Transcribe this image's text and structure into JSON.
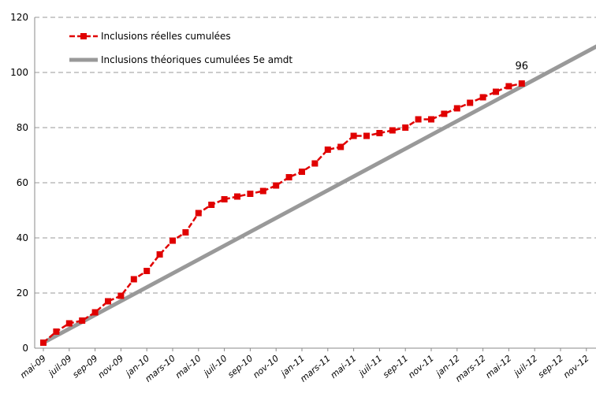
{
  "chart_data": {
    "type": "line",
    "title": "",
    "xlabel": "",
    "ylabel": "",
    "ylim": [
      0,
      120
    ],
    "yticks": [
      0,
      20,
      40,
      60,
      80,
      100,
      120
    ],
    "grid": true,
    "legend_position": "top-left",
    "x_tick_labels": [
      "mai-09",
      "juil-09",
      "sep-09",
      "nov-09",
      "jan-10",
      "mars-10",
      "mai-10",
      "juil-10",
      "sep-10",
      "nov-10",
      "jan-11",
      "mars-11",
      "mai-11",
      "juil-11",
      "sep-11",
      "nov-11",
      "jan-12",
      "mars-12",
      "mai-12",
      "juil-12",
      "sep-12",
      "nov-12"
    ],
    "series": [
      {
        "name": "Inclusions réelles cumulées",
        "color": "#e00000",
        "marker": "square",
        "x_start": "mai-09",
        "step": "month",
        "values": [
          2,
          6,
          9,
          10,
          13,
          17,
          19,
          25,
          28,
          34,
          39,
          42,
          49,
          52,
          54,
          55,
          56,
          57,
          59,
          62,
          64,
          67,
          72,
          73,
          77,
          77,
          78,
          79,
          80,
          83,
          83,
          85,
          87,
          89,
          91,
          93,
          95,
          96
        ]
      },
      {
        "name": "Inclusions théoriques cumulées 5e amdt",
        "color": "#999999",
        "marker": "none",
        "line": [
          {
            "x": "mai-09",
            "y": 2
          },
          {
            "x": "déc-12",
            "y": 110
          }
        ]
      }
    ],
    "annotations": [
      {
        "text": "96",
        "x": "juin-12",
        "y": 96
      }
    ]
  }
}
